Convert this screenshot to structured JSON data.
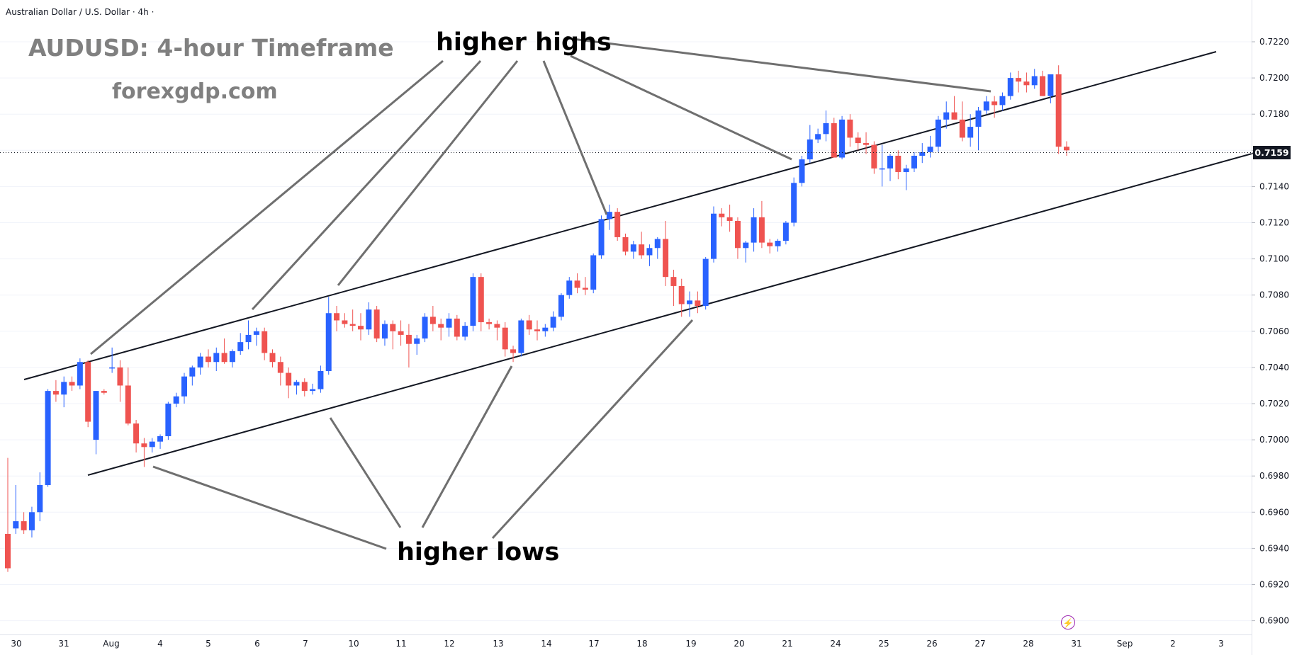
{
  "header": {
    "symbol_title": "Australian Dollar / U.S. Dollar · 4h ·"
  },
  "overlay": {
    "title": "AUDUSD: 4-hour Timeframe",
    "website": "forexgdp.com",
    "annotation_highs": "higher highs",
    "annotation_lows": "higher lows"
  },
  "icons": {
    "alert": "lightning-icon"
  },
  "colors": {
    "up": "#2962ff",
    "down": "#ef5350",
    "text": "#131722",
    "grid": "#e0e3eb"
  },
  "chart_data": {
    "type": "candlestick",
    "title": "AUDUSD: 4-hour Timeframe",
    "ylim": [
      0.689,
      0.7235
    ],
    "y_ticks": [
      "0.7220",
      "0.7200",
      "0.7180",
      "0.7160",
      "0.7140",
      "0.7120",
      "0.7100",
      "0.7080",
      "0.7060",
      "0.7040",
      "0.7020",
      "0.7000",
      "0.6980",
      "0.6960",
      "0.6940",
      "0.6920",
      "0.6900"
    ],
    "current_price": "0.7159",
    "x_ticks": [
      "30",
      "31",
      "Aug",
      "4",
      "5",
      "6",
      "7",
      "10",
      "11",
      "12",
      "13",
      "14",
      "17",
      "18",
      "19",
      "20",
      "21",
      "24",
      "25",
      "26",
      "27",
      "28",
      "31",
      "Sep",
      "2",
      "3"
    ],
    "candles": [
      [
        0.6948,
        0.699,
        0.6927,
        0.6929
      ],
      [
        0.6951,
        0.6975,
        0.6948,
        0.6955
      ],
      [
        0.6955,
        0.696,
        0.6948,
        0.695
      ],
      [
        0.695,
        0.6963,
        0.6946,
        0.696
      ],
      [
        0.696,
        0.6982,
        0.6955,
        0.6975
      ],
      [
        0.6975,
        0.7028,
        0.6974,
        0.7027
      ],
      [
        0.7027,
        0.7033,
        0.7021,
        0.7025
      ],
      [
        0.7025,
        0.7035,
        0.7018,
        0.7032
      ],
      [
        0.7032,
        0.7035,
        0.7027,
        0.703
      ],
      [
        0.703,
        0.7045,
        0.7028,
        0.7043
      ],
      [
        0.7043,
        0.7044,
        0.7007,
        0.701
      ],
      [
        0.7,
        0.7027,
        0.6992,
        0.7027
      ],
      [
        0.7027,
        0.7028,
        0.7025,
        0.7026
      ],
      [
        0.704,
        0.7051,
        0.7037,
        0.704
      ],
      [
        0.704,
        0.7044,
        0.7021,
        0.703
      ],
      [
        0.703,
        0.704,
        0.7008,
        0.7009
      ],
      [
        0.7009,
        0.7011,
        0.6993,
        0.6998
      ],
      [
        0.6998,
        0.7001,
        0.6985,
        0.6996
      ],
      [
        0.6996,
        0.7001,
        0.6993,
        0.6999
      ],
      [
        0.6999,
        0.7003,
        0.6995,
        0.7002
      ],
      [
        0.7002,
        0.7021,
        0.7,
        0.702
      ],
      [
        0.702,
        0.7026,
        0.7018,
        0.7024
      ],
      [
        0.7024,
        0.7037,
        0.702,
        0.7035
      ],
      [
        0.7035,
        0.7041,
        0.703,
        0.704
      ],
      [
        0.704,
        0.7048,
        0.7036,
        0.7046
      ],
      [
        0.7046,
        0.705,
        0.704,
        0.7043
      ],
      [
        0.7043,
        0.7051,
        0.7038,
        0.7048
      ],
      [
        0.7048,
        0.7056,
        0.7042,
        0.7043
      ],
      [
        0.7043,
        0.705,
        0.704,
        0.7049
      ],
      [
        0.7049,
        0.7059,
        0.7047,
        0.7054
      ],
      [
        0.7054,
        0.7066,
        0.705,
        0.7058
      ],
      [
        0.7058,
        0.7062,
        0.7052,
        0.706
      ],
      [
        0.706,
        0.7062,
        0.7044,
        0.7048
      ],
      [
        0.7048,
        0.705,
        0.704,
        0.7043
      ],
      [
        0.7043,
        0.7046,
        0.703,
        0.7037
      ],
      [
        0.7037,
        0.704,
        0.7023,
        0.703
      ],
      [
        0.703,
        0.7033,
        0.7025,
        0.7032
      ],
      [
        0.7032,
        0.7034,
        0.7024,
        0.7027
      ],
      [
        0.7027,
        0.7031,
        0.7025,
        0.7028
      ],
      [
        0.7028,
        0.7041,
        0.7026,
        0.7038
      ],
      [
        0.7038,
        0.7079,
        0.7036,
        0.707
      ],
      [
        0.707,
        0.7074,
        0.706,
        0.7066
      ],
      [
        0.7066,
        0.707,
        0.7062,
        0.7064
      ],
      [
        0.7064,
        0.7072,
        0.706,
        0.7063
      ],
      [
        0.7063,
        0.707,
        0.7055,
        0.7061
      ],
      [
        0.7061,
        0.7076,
        0.7058,
        0.7072
      ],
      [
        0.7072,
        0.7074,
        0.7054,
        0.7056
      ],
      [
        0.7056,
        0.7066,
        0.7052,
        0.7064
      ],
      [
        0.7064,
        0.7066,
        0.705,
        0.706
      ],
      [
        0.706,
        0.7066,
        0.7052,
        0.7058
      ],
      [
        0.7058,
        0.7064,
        0.704,
        0.7053
      ],
      [
        0.7053,
        0.7058,
        0.7047,
        0.7056
      ],
      [
        0.7056,
        0.707,
        0.7054,
        0.7068
      ],
      [
        0.7068,
        0.7074,
        0.706,
        0.7064
      ],
      [
        0.7064,
        0.7067,
        0.7055,
        0.7062
      ],
      [
        0.7062,
        0.707,
        0.7057,
        0.7067
      ],
      [
        0.7067,
        0.7069,
        0.7055,
        0.7057
      ],
      [
        0.7057,
        0.7065,
        0.7055,
        0.7063
      ],
      [
        0.7063,
        0.7092,
        0.706,
        0.709
      ],
      [
        0.709,
        0.7092,
        0.706,
        0.7065
      ],
      [
        0.7065,
        0.7067,
        0.7061,
        0.7064
      ],
      [
        0.7064,
        0.7066,
        0.7055,
        0.7062
      ],
      [
        0.7062,
        0.7065,
        0.7046,
        0.705
      ],
      [
        0.705,
        0.7052,
        0.7043,
        0.7048
      ],
      [
        0.7048,
        0.7067,
        0.7046,
        0.7066
      ],
      [
        0.7066,
        0.7069,
        0.7058,
        0.7061
      ],
      [
        0.7061,
        0.7066,
        0.7055,
        0.706
      ],
      [
        0.706,
        0.7064,
        0.7057,
        0.7062
      ],
      [
        0.7062,
        0.7071,
        0.706,
        0.7068
      ],
      [
        0.7068,
        0.7081,
        0.7066,
        0.708
      ],
      [
        0.708,
        0.709,
        0.7078,
        0.7088
      ],
      [
        0.7088,
        0.7092,
        0.7081,
        0.7084
      ],
      [
        0.7084,
        0.709,
        0.708,
        0.7083
      ],
      [
        0.7083,
        0.7103,
        0.7081,
        0.7102
      ],
      [
        0.7102,
        0.7124,
        0.71,
        0.7122
      ],
      [
        0.7122,
        0.713,
        0.7116,
        0.7126
      ],
      [
        0.7126,
        0.7128,
        0.711,
        0.7112
      ],
      [
        0.7112,
        0.7114,
        0.7102,
        0.7104
      ],
      [
        0.7104,
        0.711,
        0.71,
        0.7108
      ],
      [
        0.7108,
        0.7115,
        0.71,
        0.7102
      ],
      [
        0.7102,
        0.7108,
        0.7096,
        0.7106
      ],
      [
        0.7106,
        0.7112,
        0.71,
        0.7111
      ],
      [
        0.7111,
        0.7121,
        0.7085,
        0.709
      ],
      [
        0.709,
        0.7094,
        0.7074,
        0.7085
      ],
      [
        0.7085,
        0.7089,
        0.7068,
        0.7075
      ],
      [
        0.7075,
        0.7082,
        0.7068,
        0.7077
      ],
      [
        0.7077,
        0.7082,
        0.707,
        0.7074
      ],
      [
        0.7074,
        0.7101,
        0.7072,
        0.71
      ],
      [
        0.71,
        0.7129,
        0.7098,
        0.7125
      ],
      [
        0.7125,
        0.7128,
        0.7118,
        0.7123
      ],
      [
        0.7123,
        0.713,
        0.7115,
        0.7121
      ],
      [
        0.7121,
        0.7123,
        0.71,
        0.7106
      ],
      [
        0.7106,
        0.711,
        0.7098,
        0.7109
      ],
      [
        0.7109,
        0.7128,
        0.7104,
        0.7123
      ],
      [
        0.7123,
        0.7132,
        0.7106,
        0.7109
      ],
      [
        0.7109,
        0.7111,
        0.7103,
        0.7107
      ],
      [
        0.7107,
        0.7111,
        0.7104,
        0.711
      ],
      [
        0.711,
        0.7121,
        0.7108,
        0.712
      ],
      [
        0.712,
        0.7145,
        0.7118,
        0.7142
      ],
      [
        0.7142,
        0.7157,
        0.714,
        0.7155
      ],
      [
        0.7155,
        0.7174,
        0.7153,
        0.7166
      ],
      [
        0.7166,
        0.7172,
        0.7164,
        0.7169
      ],
      [
        0.7169,
        0.7182,
        0.7165,
        0.7175
      ],
      [
        0.7175,
        0.7178,
        0.7156,
        0.7156
      ],
      [
        0.7156,
        0.7179,
        0.7155,
        0.7177
      ],
      [
        0.7177,
        0.718,
        0.7162,
        0.7167
      ],
      [
        0.7167,
        0.717,
        0.716,
        0.7164
      ],
      [
        0.7164,
        0.717,
        0.7158,
        0.7163
      ],
      [
        0.7163,
        0.7165,
        0.7147,
        0.715
      ],
      [
        0.715,
        0.7163,
        0.714,
        0.715
      ],
      [
        0.715,
        0.7158,
        0.7143,
        0.7157
      ],
      [
        0.7157,
        0.716,
        0.7144,
        0.7148
      ],
      [
        0.7148,
        0.7152,
        0.7138,
        0.715
      ],
      [
        0.715,
        0.7159,
        0.7148,
        0.7157
      ],
      [
        0.7157,
        0.7164,
        0.7153,
        0.7159
      ],
      [
        0.7159,
        0.7168,
        0.7156,
        0.7162
      ],
      [
        0.7162,
        0.7179,
        0.7159,
        0.7177
      ],
      [
        0.7177,
        0.7187,
        0.7172,
        0.7181
      ],
      [
        0.7181,
        0.719,
        0.7177,
        0.7177
      ],
      [
        0.7177,
        0.7187,
        0.7165,
        0.7167
      ],
      [
        0.7167,
        0.718,
        0.7162,
        0.7173
      ],
      [
        0.7173,
        0.7184,
        0.716,
        0.7182
      ],
      [
        0.7182,
        0.719,
        0.718,
        0.7187
      ],
      [
        0.7187,
        0.719,
        0.7178,
        0.7185
      ],
      [
        0.7185,
        0.7192,
        0.7182,
        0.719
      ],
      [
        0.719,
        0.7203,
        0.7188,
        0.72
      ],
      [
        0.72,
        0.7204,
        0.7192,
        0.7198
      ],
      [
        0.7198,
        0.7203,
        0.7192,
        0.7196
      ],
      [
        0.7196,
        0.7205,
        0.7194,
        0.7201
      ],
      [
        0.7201,
        0.7204,
        0.719,
        0.719
      ],
      [
        0.719,
        0.7202,
        0.7186,
        0.7202
      ],
      [
        0.7202,
        0.7207,
        0.7158,
        0.7162
      ],
      [
        0.7162,
        0.7165,
        0.7157,
        0.716
      ]
    ]
  }
}
